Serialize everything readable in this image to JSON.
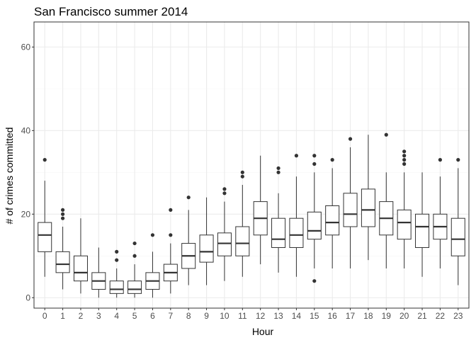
{
  "chart_data": {
    "type": "box",
    "title": "San Francisco summer 2014",
    "xlabel": "Hour",
    "ylabel": "# of crimes committed",
    "categories": [
      "0",
      "1",
      "2",
      "3",
      "4",
      "5",
      "6",
      "7",
      "8",
      "9",
      "10",
      "11",
      "12",
      "13",
      "14",
      "15",
      "16",
      "17",
      "18",
      "19",
      "20",
      "21",
      "22",
      "23"
    ],
    "ylim": [
      -2.5,
      66
    ],
    "yticks": [
      0,
      20,
      40,
      60
    ],
    "grid": true,
    "legend": "none",
    "colors": {
      "box_fill": "#ffffff",
      "box_line": "#333333",
      "outlier": "#333333",
      "grid_major": "#ebebeb",
      "grid_minor": "#f5f5f5",
      "panel_border": "#333333"
    },
    "boxes": [
      {
        "hour": "0",
        "lower": 5,
        "q1": 11,
        "median": 15,
        "q3": 18,
        "upper": 28,
        "outliers": [
          33
        ]
      },
      {
        "hour": "1",
        "lower": 2,
        "q1": 6,
        "median": 8,
        "q3": 11,
        "upper": 17,
        "outliers": [
          19,
          20,
          21
        ]
      },
      {
        "hour": "2",
        "lower": 1,
        "q1": 4,
        "median": 6,
        "q3": 10,
        "upper": 19,
        "outliers": []
      },
      {
        "hour": "3",
        "lower": 0,
        "q1": 2,
        "median": 4,
        "q3": 6,
        "upper": 12,
        "outliers": []
      },
      {
        "hour": "4",
        "lower": 0,
        "q1": 1,
        "median": 2,
        "q3": 4,
        "upper": 7,
        "outliers": [
          9,
          11
        ]
      },
      {
        "hour": "5",
        "lower": 0,
        "q1": 1,
        "median": 2,
        "q3": 4,
        "upper": 8,
        "outliers": [
          10,
          13
        ]
      },
      {
        "hour": "6",
        "lower": 0,
        "q1": 2,
        "median": 4,
        "q3": 6,
        "upper": 11,
        "outliers": [
          15
        ]
      },
      {
        "hour": "7",
        "lower": 1,
        "q1": 4,
        "median": 6,
        "q3": 8,
        "upper": 13,
        "outliers": [
          15,
          21
        ]
      },
      {
        "hour": "8",
        "lower": 3,
        "q1": 7,
        "median": 10,
        "q3": 13,
        "upper": 21,
        "outliers": [
          24
        ]
      },
      {
        "hour": "9",
        "lower": 3,
        "q1": 8.5,
        "median": 11,
        "q3": 15,
        "upper": 24,
        "outliers": []
      },
      {
        "hour": "10",
        "lower": 4,
        "q1": 10,
        "median": 13,
        "q3": 15.5,
        "upper": 23,
        "outliers": [
          25,
          26
        ]
      },
      {
        "hour": "11",
        "lower": 5,
        "q1": 10,
        "median": 13,
        "q3": 17,
        "upper": 27,
        "outliers": [
          29,
          30
        ]
      },
      {
        "hour": "12",
        "lower": 8,
        "q1": 15,
        "median": 19,
        "q3": 23,
        "upper": 34,
        "outliers": []
      },
      {
        "hour": "13",
        "lower": 6,
        "q1": 12,
        "median": 14,
        "q3": 19,
        "upper": 25,
        "outliers": [
          30,
          31
        ]
      },
      {
        "hour": "14",
        "lower": 5,
        "q1": 12,
        "median": 15,
        "q3": 19,
        "upper": 29,
        "outliers": [
          34
        ]
      },
      {
        "hour": "15",
        "lower": 7,
        "q1": 14,
        "median": 16,
        "q3": 20.5,
        "upper": 30,
        "outliers": [
          4,
          32,
          34
        ]
      },
      {
        "hour": "16",
        "lower": 7,
        "q1": 15,
        "median": 18,
        "q3": 22,
        "upper": 31,
        "outliers": [
          33
        ]
      },
      {
        "hour": "17",
        "lower": 7,
        "q1": 17,
        "median": 20,
        "q3": 25,
        "upper": 36,
        "outliers": [
          38
        ]
      },
      {
        "hour": "18",
        "lower": 9,
        "q1": 17,
        "median": 21,
        "q3": 26,
        "upper": 39,
        "outliers": []
      },
      {
        "hour": "19",
        "lower": 7,
        "q1": 15,
        "median": 19,
        "q3": 23,
        "upper": 30,
        "outliers": [
          39
        ]
      },
      {
        "hour": "20",
        "lower": 7,
        "q1": 14,
        "median": 18,
        "q3": 21,
        "upper": 30,
        "outliers": [
          32,
          33,
          34,
          35
        ]
      },
      {
        "hour": "21",
        "lower": 5,
        "q1": 12,
        "median": 17,
        "q3": 20,
        "upper": 30,
        "outliers": []
      },
      {
        "hour": "22",
        "lower": 7,
        "q1": 14,
        "median": 17,
        "q3": 20,
        "upper": 29,
        "outliers": [
          33
        ]
      },
      {
        "hour": "23",
        "lower": 3,
        "q1": 10,
        "median": 14,
        "q3": 19,
        "upper": 31,
        "outliers": [
          33
        ]
      }
    ]
  }
}
